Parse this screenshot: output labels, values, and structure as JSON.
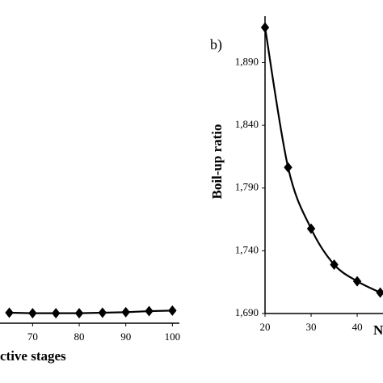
{
  "chart_data": [
    {
      "type": "line",
      "color": "#000000",
      "xlabel": "ctive stages",
      "x": [
        65,
        70,
        75,
        80,
        85,
        90,
        95,
        100
      ],
      "values": [
        1.0,
        0.95,
        0.95,
        0.95,
        1.0,
        1.05,
        1.15,
        1.2
      ],
      "xlim": [
        63,
        101.5
      ],
      "ylim": [
        0,
        30
      ],
      "xticks": [
        70,
        80,
        90,
        100
      ],
      "marker": "diamond",
      "smooth": false
    },
    {
      "type": "line",
      "color": "#000000",
      "panel_label": "b)",
      "ylabel": "Boil-up ratio",
      "xlabel": "N",
      "x": [
        20,
        25,
        30,
        35,
        40,
        45
      ],
      "values": [
        1918,
        1806.5,
        1757.6,
        1729,
        1715.7,
        1706.7
      ],
      "xlim": [
        20,
        45.6
      ],
      "ylim": [
        1690,
        1927
      ],
      "xticks": [
        20,
        30,
        40
      ],
      "yticks": [
        {
          "value": 1690,
          "label": "1,690"
        },
        {
          "value": 1740,
          "label": "1,740"
        },
        {
          "value": 1790,
          "label": "1,790"
        },
        {
          "value": 1840,
          "label": "1,840"
        },
        {
          "value": 1890,
          "label": "1,890"
        }
      ],
      "marker": "diamond",
      "smooth": true
    }
  ]
}
